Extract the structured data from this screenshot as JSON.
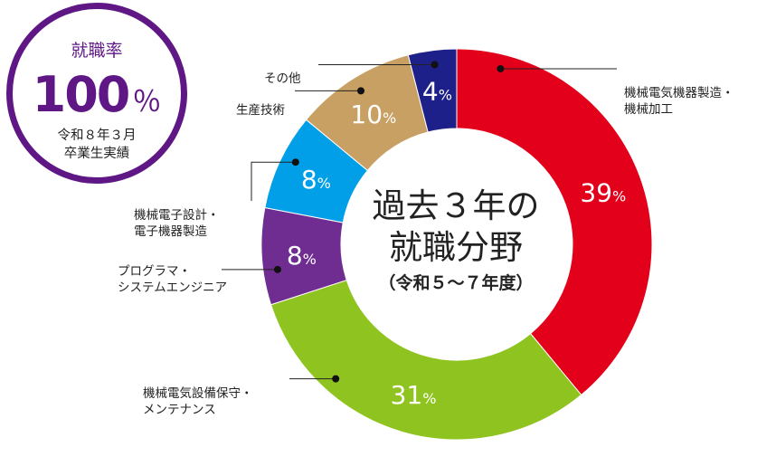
{
  "badge": {
    "title": "就職率",
    "value": "100",
    "unit": "％",
    "note_line1": "令和８年３月",
    "note_line2": "卒業生実績"
  },
  "center": {
    "line1": "過去３年の",
    "line2": "就職分野",
    "line3": "（令和５～７年度）"
  },
  "chart_data": {
    "type": "pie",
    "donut": true,
    "categories": [
      "機械電気機器製造・機械加工",
      "機械電気設備保守・メンテナンス",
      "プログラマ・システムエンジニア",
      "機械電子設計・電子機器製造",
      "生産技術",
      "その他"
    ],
    "values": [
      39,
      31,
      8,
      8,
      10,
      4
    ],
    "value_unit": "%",
    "colors": [
      "#e2001a",
      "#8fc31f",
      "#6f2c91",
      "#009fe8",
      "#c9a063",
      "#1d2088"
    ],
    "start_angle_deg": 0,
    "direction": "clockwise",
    "legend": "none"
  },
  "labels": [
    {
      "line1": "機械電気機器製造・",
      "line2": "機械加工"
    },
    {
      "line1": "機械電気設備保守・",
      "line2": "メンテナンス"
    },
    {
      "line1": "プログラマ・",
      "line2": "システムエンジニア"
    },
    {
      "line1": "機械電子設計・",
      "line2": "電子機器製造"
    },
    {
      "line1": "生産技術",
      "line2": ""
    },
    {
      "line1": "その他",
      "line2": ""
    }
  ]
}
